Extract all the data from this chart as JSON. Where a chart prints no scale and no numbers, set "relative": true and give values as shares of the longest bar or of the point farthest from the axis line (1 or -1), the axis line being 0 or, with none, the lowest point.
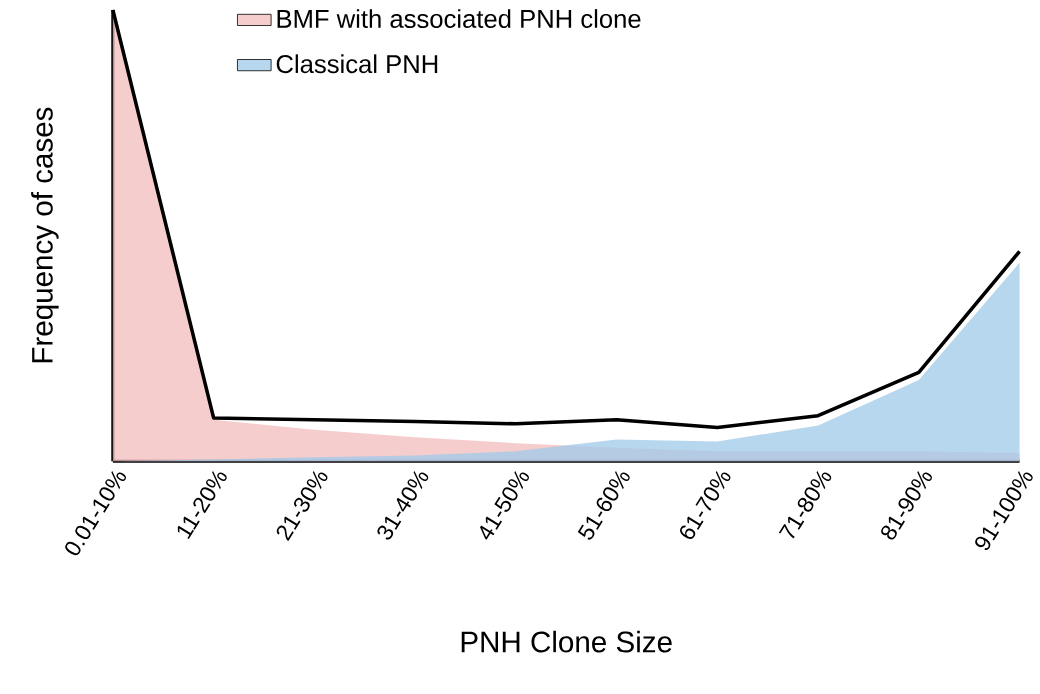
{
  "chart_data": {
    "type": "area",
    "relative": true,
    "xlabel": "PNH Clone Size",
    "ylabel": "Frequency of cases",
    "legend": "top",
    "categories": [
      "0.01-10%",
      "11-20%",
      "21-30%",
      "31-40%",
      "41-50%",
      "51-60%",
      "61-70%",
      "71-80%",
      "81-90%",
      "91-100%"
    ],
    "series": [
      {
        "name": "BMF with associated PNH clone",
        "color": "#f2bcbc",
        "values": [
          1,
          0.092,
          0.07,
          0.053,
          0.04,
          0.03,
          0.022,
          0.022,
          0.022,
          0.018
        ]
      },
      {
        "name": "Classical PNH",
        "color": "#9fc9ea",
        "values": [
          0,
          0.004,
          0.009,
          0.013,
          0.022,
          0.048,
          0.044,
          0.079,
          0.18,
          0.44
        ]
      },
      {
        "type": "line",
        "color": "#000000",
        "values": [
          1,
          0.096,
          0.092,
          0.088,
          0.083,
          0.092,
          0.075,
          0.101,
          0.197,
          0.465
        ]
      }
    ]
  }
}
